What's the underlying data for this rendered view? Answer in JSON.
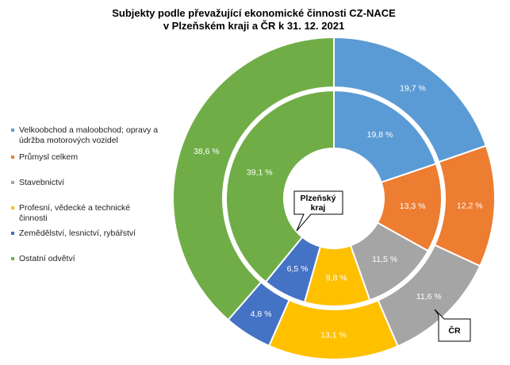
{
  "chart_data": {
    "type": "pie",
    "subtype": "double-donut",
    "title_line1": "Subjekty podle převažující ekonomické činnosti  CZ-NACE",
    "title_line2": "v Plzeňském kraji a ČR  k 31. 12. 2021",
    "categories": [
      "Velkoobchod a maloobchod; opravy a údržba motorových vozidel",
      "Průmysl celkem",
      "Stavebnictví",
      "Profesní, vědecké a technické činnosti",
      "Zemědělství, lesnictví, rybářství",
      "Ostatní odvětví"
    ],
    "colors": [
      "#5B9BD5",
      "#ED7D31",
      "#A5A5A5",
      "#FFC000",
      "#4472C4",
      "#70AD47"
    ],
    "series": [
      {
        "name": "Plzeňský kraj",
        "ring": "inner",
        "values": [
          19.8,
          13.3,
          11.5,
          9.8,
          6.5,
          39.1
        ],
        "labels": [
          "19,8 %",
          "13,3 %",
          "11,5 %",
          "9,8 %",
          "6,5 %",
          "39,1 %"
        ]
      },
      {
        "name": "ČR",
        "ring": "outer",
        "values": [
          19.7,
          12.2,
          11.6,
          13.1,
          4.8,
          38.6
        ],
        "labels": [
          "19,7 %",
          "12,2 %",
          "11,6 %",
          "13,1 %",
          "4,8 %",
          "38,6 %"
        ]
      }
    ],
    "legend_position": "left",
    "callouts": {
      "inner": "Plzeňský kraj",
      "inner_line1": "Plzeňský",
      "inner_line2": "kraj",
      "outer": "ČR"
    }
  }
}
